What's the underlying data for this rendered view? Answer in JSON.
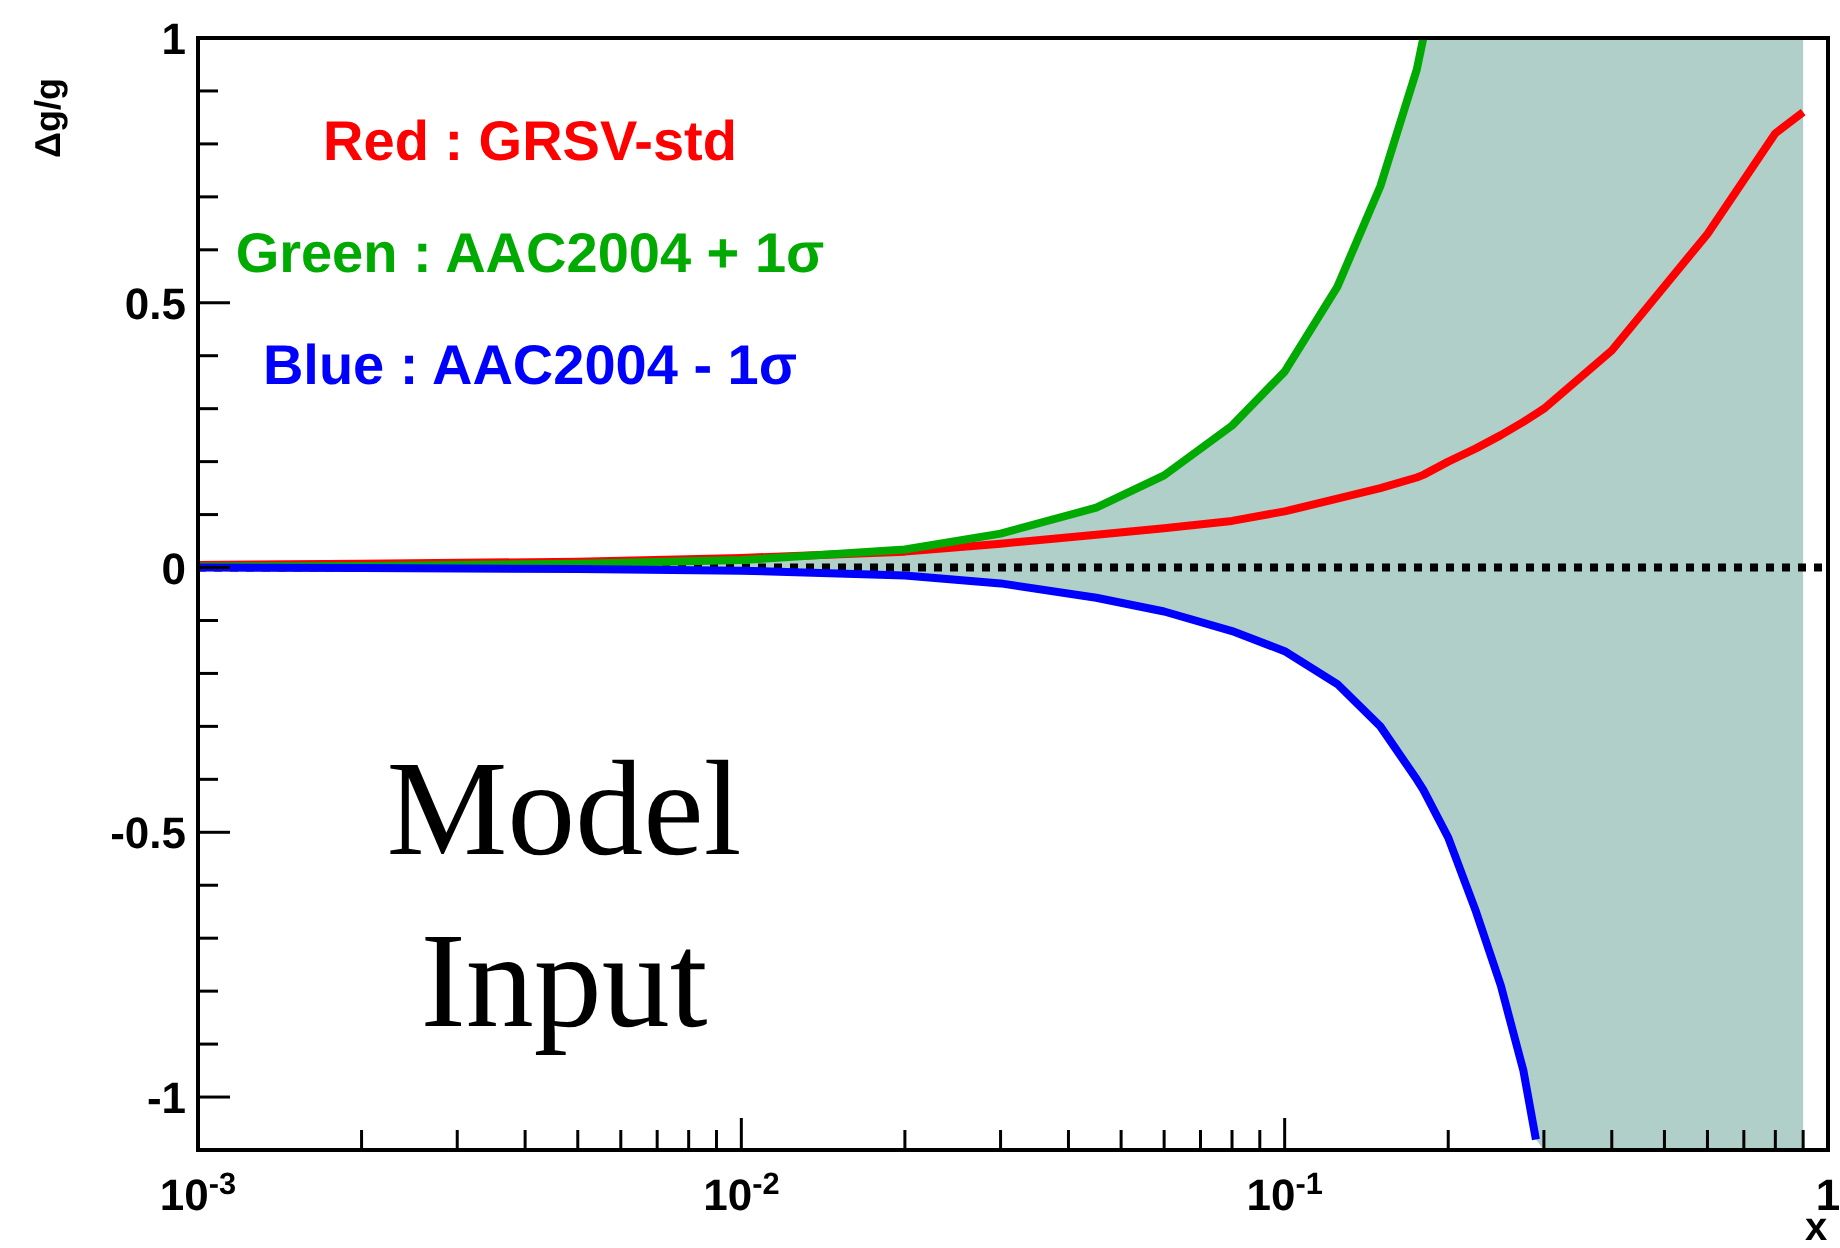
{
  "chart_data": {
    "type": "line",
    "xlabel": "x",
    "ylabel": "Δg/g",
    "log": "x",
    "grid": false,
    "legend": "top left",
    "marker": "none",
    "line_style": "solid",
    "x": [
      0.001,
      0.002,
      0.005,
      0.01,
      0.02,
      0.03,
      0.045,
      0.06,
      0.08,
      0.1,
      0.125,
      0.15,
      0.175,
      0.18,
      0.2,
      0.225,
      0.25,
      0.275,
      0.29,
      0.3,
      0.4,
      0.6,
      0.8,
      0.9
    ],
    "series": [
      {
        "name": "Red : GRSV-std",
        "color": "#ff0000",
        "values": [
          0.005,
          0.007,
          0.011,
          0.018,
          0.03,
          0.045,
          0.062,
          0.074,
          0.088,
          0.106,
          0.13,
          0.15,
          0.17,
          0.175,
          0.2,
          0.225,
          0.25,
          0.275,
          0.29,
          0.3,
          0.41,
          0.63,
          0.82,
          0.86
        ],
        "lower": [
          0,
          -0.001,
          -0.003,
          -0.006,
          -0.015,
          -0.03,
          -0.057,
          -0.083,
          -0.12,
          -0.158,
          -0.22,
          -0.3,
          -0.4,
          -0.42,
          -0.51,
          -0.65,
          -0.79,
          -0.95,
          -1.08,
          -1.1,
          -1.1,
          -1.1,
          -1.1,
          -1.1
        ],
        "upper": [
          0.002,
          0.003,
          0.007,
          0.014,
          0.034,
          0.064,
          0.113,
          0.174,
          0.268,
          0.37,
          0.53,
          0.72,
          0.94,
          1,
          1,
          1,
          1,
          1,
          1,
          1,
          1,
          1,
          1,
          1
        ]
      },
      {
        "name": "Green : AAC2004 + 1σ",
        "color": "#00aa00",
        "values": [
          0.002,
          0.003,
          0.007,
          0.014,
          0.034,
          0.064,
          0.113,
          0.174,
          0.268,
          0.37,
          0.53,
          0.72,
          0.94,
          1,
          null,
          null,
          null,
          null,
          null,
          null,
          null,
          null,
          null,
          null
        ]
      },
      {
        "name": "Blue : AAC2004 - 1σ",
        "color": "#0000ff",
        "values": [
          0,
          -0.001,
          -0.003,
          -0.006,
          -0.015,
          -0.03,
          -0.057,
          -0.083,
          -0.12,
          -0.158,
          -0.22,
          -0.3,
          -0.4,
          -0.42,
          -0.51,
          -0.65,
          -0.79,
          -0.95,
          -1.08,
          null,
          null,
          null,
          null,
          null
        ]
      }
    ],
    "xlim": [
      0.001,
      1
    ],
    "xticks": [
      {
        "value": 0.001,
        "label": "10$^{-3}$"
      },
      {
        "value": 0.002,
        "label": null
      },
      {
        "value": 0.003,
        "label": null
      },
      {
        "value": 0.004,
        "label": null
      },
      {
        "value": 0.005,
        "label": null
      },
      {
        "value": 0.006,
        "label": null
      },
      {
        "value": 0.007,
        "label": null
      },
      {
        "value": 0.008,
        "label": null
      },
      {
        "value": 0.009,
        "label": null
      },
      {
        "value": 0.01,
        "label": "10$^{-2}$"
      },
      {
        "value": 0.02,
        "label": null
      },
      {
        "value": 0.03,
        "label": null
      },
      {
        "value": 0.04,
        "label": null
      },
      {
        "value": 0.05,
        "label": null
      },
      {
        "value": 0.06,
        "label": null
      },
      {
        "value": 0.07,
        "label": null
      },
      {
        "value": 0.08,
        "label": null
      },
      {
        "value": 0.09,
        "label": null
      },
      {
        "value": 0.1,
        "label": "10$^{-1}$"
      },
      {
        "value": 0.2,
        "label": null
      },
      {
        "value": 0.3,
        "label": null
      },
      {
        "value": 0.4,
        "label": null
      },
      {
        "value": 0.5,
        "label": null
      },
      {
        "value": 0.6,
        "label": null
      },
      {
        "value": 0.7,
        "label": null
      },
      {
        "value": 0.8,
        "label": null
      },
      {
        "value": 0.9,
        "label": null
      },
      1
    ],
    "ylim": [
      -1.1,
      1
    ],
    "yticks": [
      -1,
      {
        "value": -0.9,
        "label": null
      },
      {
        "value": -0.8,
        "label": null
      },
      {
        "value": -0.7,
        "label": null
      },
      {
        "value": -0.6,
        "label": null
      },
      -0.5,
      {
        "value": -0.4,
        "label": null
      },
      {
        "value": -0.3,
        "label": null
      },
      {
        "value": -0.2,
        "label": null
      },
      {
        "value": -0.1,
        "label": null
      },
      0,
      {
        "value": 0.1,
        "label": null
      },
      {
        "value": 0.2,
        "label": null
      },
      {
        "value": 0.3,
        "label": null
      },
      {
        "value": 0.4,
        "label": null
      },
      0.5,
      {
        "value": 0.6,
        "label": null
      },
      {
        "value": 0.7,
        "label": null
      },
      {
        "value": 0.8,
        "label": null
      },
      {
        "value": 0.9,
        "label": null
      },
      1
    ],
    "ref_lines": [
      {
        "axis": "y",
        "value": 0,
        "color": "#000000",
        "line_style": "dotted"
      }
    ],
    "annotations": [
      "Model\nInput"
    ]
  }
}
